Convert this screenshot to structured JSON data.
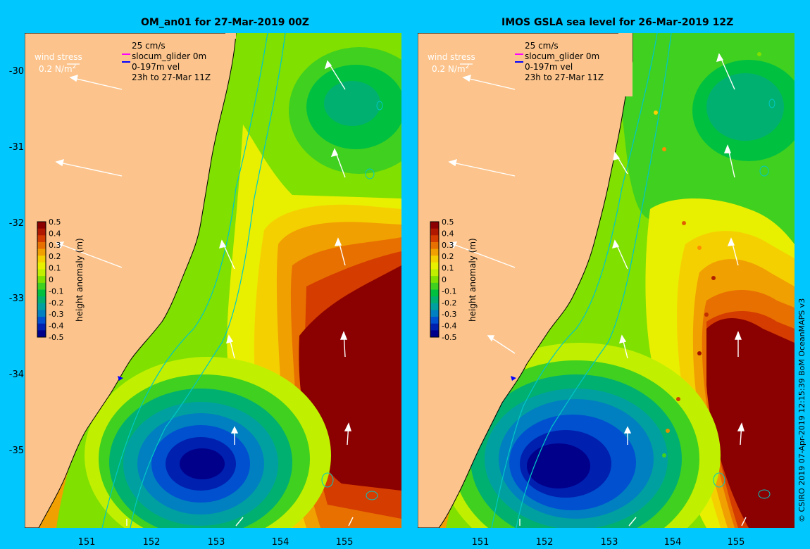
{
  "panels": [
    {
      "title": "OM_an01 for 27-Mar-2019 00Z",
      "wind_label": "wind stress",
      "wind_scale": "0.2 N/m",
      "wind_scale_sup": "2",
      "legend": [
        "25 cm/s",
        "slocum_glider 0m",
        "0-197m vel",
        "23h to 27-Mar 11Z"
      ]
    },
    {
      "title": "IMOS GSLA sea level  for 26-Mar-2019 12Z",
      "wind_label": "wind stress",
      "wind_scale": "0.2 N/m",
      "wind_scale_sup": "2",
      "legend": [
        "25 cm/s",
        "slocum_glider 0m",
        "0-197m vel",
        "23h to 27-Mar 11Z"
      ]
    }
  ],
  "axes": {
    "lat_ticks": [
      "-30",
      "-31",
      "-32",
      "-33",
      "-34",
      "-35"
    ],
    "lon_ticks": [
      "151",
      "152",
      "153",
      "154",
      "155"
    ]
  },
  "colorbar": {
    "label": "height anomaly (m)",
    "ticks": [
      "0.5",
      "0.4",
      "0.3",
      "0.2",
      "0.1",
      "0",
      "-0.1",
      "-0.2",
      "-0.3",
      "-0.4",
      "-0.5"
    ],
    "colors": [
      "#8b0000",
      "#b01800",
      "#d43c00",
      "#e87000",
      "#f0a000",
      "#f5d000",
      "#e8f000",
      "#c0f000",
      "#80e000",
      "#40d020",
      "#00c040",
      "#00b070",
      "#00a0a0",
      "#0080c0",
      "#0050d0",
      "#0020b0",
      "#00008b"
    ]
  },
  "legend_colors": {
    "glider": "#ff00ff",
    "vel": "#0000ff"
  },
  "land_color": "#fcc48c",
  "credit": "© CSIRO 2019   07-Apr-2019 12:15:39 BoM OceanMAPS v3"
}
